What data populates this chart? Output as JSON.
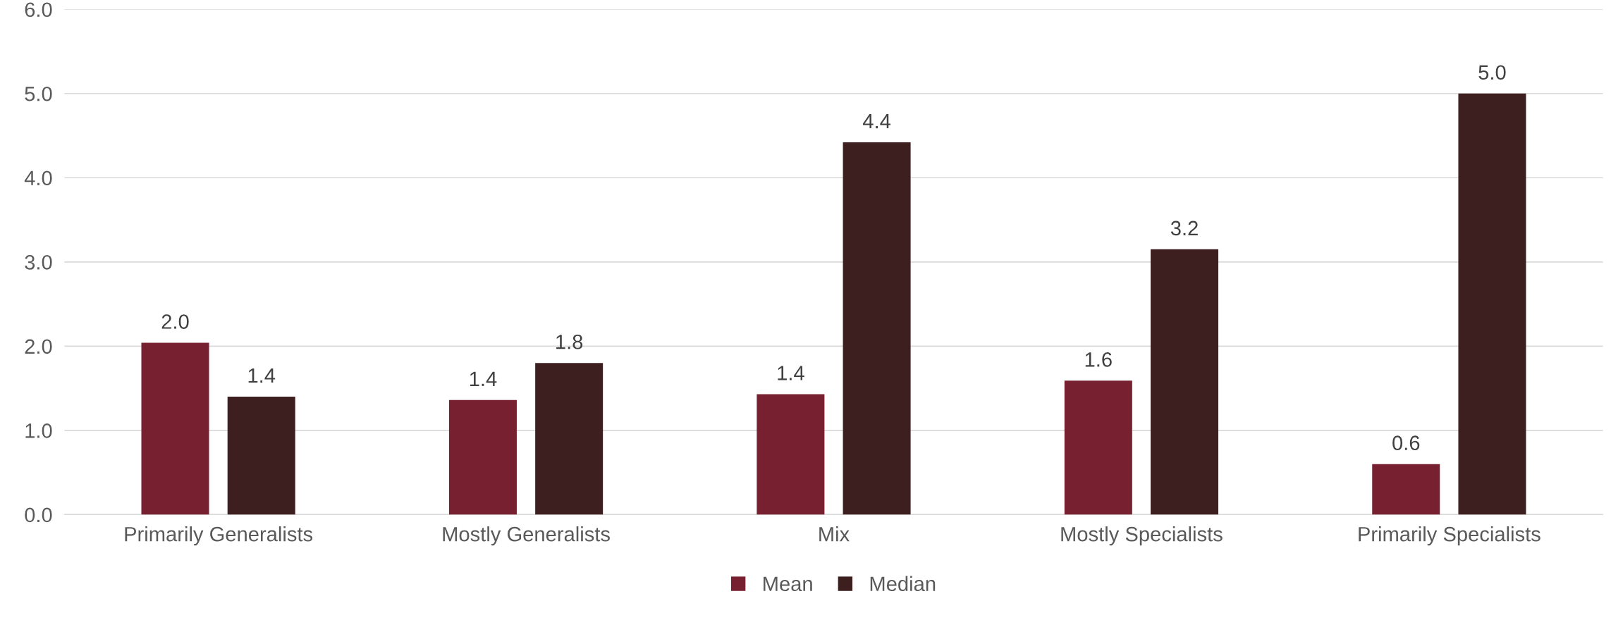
{
  "chart_data": {
    "type": "bar",
    "categories": [
      "Primarily Generalists",
      "Mostly Generalists",
      "Mix",
      "Mostly Specialists",
      "Primarily Specialists"
    ],
    "series": [
      {
        "name": "Mean",
        "color": "#77202f",
        "values": [
          2.04,
          1.36,
          1.43,
          1.59,
          0.6
        ],
        "value_labels": [
          "2.0",
          "1.4",
          "1.4",
          "1.6",
          "0.6"
        ]
      },
      {
        "name": "Median",
        "color": "#3e1f20",
        "values": [
          1.4,
          1.8,
          4.42,
          3.15,
          5.0
        ],
        "value_labels": [
          "1.4",
          "1.8",
          "4.4",
          "3.2",
          "5.0"
        ]
      }
    ],
    "ylim": [
      0,
      6
    ],
    "yticks": [
      {
        "value": 0,
        "label": "0.0"
      },
      {
        "value": 1,
        "label": "1.0"
      },
      {
        "value": 2,
        "label": "2.0"
      },
      {
        "value": 3,
        "label": "3.0"
      },
      {
        "value": 4,
        "label": "4.0"
      },
      {
        "value": 5,
        "label": "5.0"
      },
      {
        "value": 6,
        "label": "6.0"
      }
    ],
    "grid": "y",
    "legend": "bottom"
  }
}
